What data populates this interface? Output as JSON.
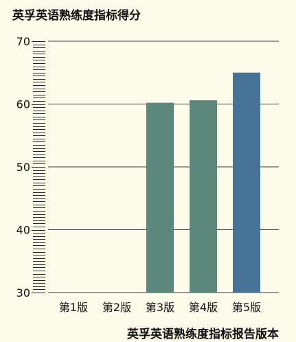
{
  "chart_data": {
    "type": "bar",
    "title": "英孚英语熟练度指标得分",
    "xlabel": "英孚英语熟练度指标报告版本",
    "ylabel": "",
    "categories": [
      "第1版",
      "第2版",
      "第3版",
      "第4版",
      "第5版"
    ],
    "values": [
      null,
      null,
      60.2,
      60.6,
      65.0
    ],
    "ylim": [
      30,
      70
    ],
    "yticks": [
      30,
      40,
      50,
      60,
      70
    ],
    "grid": true,
    "minor_tick_step": 0.5,
    "colors": {
      "background": "#fdfbe9",
      "bar": "#5c877d",
      "bar_highlight": "#477399",
      "grid": "#3a3a3a",
      "axis": "#222222",
      "text": "#111111"
    },
    "highlight_index": 4
  }
}
